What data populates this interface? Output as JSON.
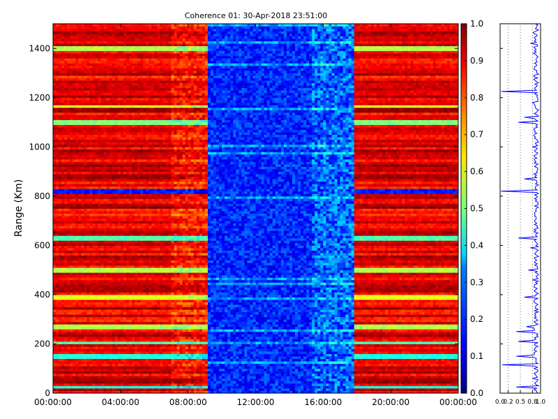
{
  "chart_data": [
    {
      "type": "heatmap",
      "title": "Coherence 01: 30-Apr-2018 23:51:00",
      "ylabel": "Range (Km)",
      "xlabel": "",
      "x_tick_labels": [
        "00:00:00",
        "04:00:00",
        "08:00:00",
        "12:00:00",
        "16:00:00",
        "20:00:00",
        "00:00:00"
      ],
      "x_range_hours": [
        0,
        24
      ],
      "y_ticks": [
        0,
        200,
        400,
        600,
        800,
        1000,
        1200,
        1400
      ],
      "ylim": [
        0,
        1500
      ],
      "colorscale": "jet",
      "value_range": [
        0.0,
        1.0
      ],
      "time_segments": [
        {
          "start_hour": 0.0,
          "end_hour": 7.0,
          "mean_coherence": 0.88,
          "spread": 0.12
        },
        {
          "start_hour": 7.0,
          "end_hour": 9.1,
          "mean_coherence": 0.85,
          "spread": 0.15
        },
        {
          "start_hour": 9.1,
          "end_hour": 15.3,
          "mean_coherence": 0.16,
          "spread": 0.08
        },
        {
          "start_hour": 15.3,
          "end_hour": 17.9,
          "mean_coherence": 0.22,
          "spread": 0.12
        },
        {
          "start_hour": 17.9,
          "end_hour": 24.0,
          "mean_coherence": 0.88,
          "spread": 0.12
        }
      ],
      "low_coherence_range_bands_km": [
        {
          "center": 820,
          "value": 0.15
        },
        {
          "center": 630,
          "value": 0.45
        },
        {
          "center": 205,
          "value": 0.45
        },
        {
          "center": 150,
          "value": 0.4
        },
        {
          "center": 25,
          "value": 0.4
        },
        {
          "center": 1100,
          "value": 0.5
        },
        {
          "center": 1400,
          "value": 0.55
        },
        {
          "center": 390,
          "value": 0.6
        },
        {
          "center": 500,
          "value": 0.55
        },
        {
          "center": 270,
          "value": 0.55
        },
        {
          "center": 1165,
          "value": 0.6
        }
      ],
      "grid": false
    },
    {
      "type": "colorbar",
      "ticks": [
        "0.0",
        "0.1",
        "0.2",
        "0.3",
        "0.4",
        "0.5",
        "0.6",
        "0.7",
        "0.8",
        "0.9",
        "1.0"
      ],
      "range": [
        0.0,
        1.0
      ]
    },
    {
      "type": "line",
      "description_profile": "mean coherence vs range",
      "x_tick_labels": [
        "0.0",
        "0.2",
        "0.5",
        "0.8",
        "1.0"
      ],
      "xlim": [
        0,
        1
      ],
      "ylim": [
        0,
        1500
      ],
      "baseline": 0.95,
      "dips": [
        {
          "range_km": 1465,
          "value": 0.82
        },
        {
          "range_km": 1420,
          "value": 0.75
        },
        {
          "range_km": 1380,
          "value": 0.82
        },
        {
          "range_km": 1340,
          "value": 0.85
        },
        {
          "range_km": 1225,
          "value": 0.03
        },
        {
          "range_km": 1180,
          "value": 0.8
        },
        {
          "range_km": 1120,
          "value": 0.6
        },
        {
          "range_km": 1100,
          "value": 0.45
        },
        {
          "range_km": 1060,
          "value": 0.85
        },
        {
          "range_km": 1000,
          "value": 0.8
        },
        {
          "range_km": 920,
          "value": 0.85
        },
        {
          "range_km": 870,
          "value": 0.6
        },
        {
          "range_km": 820,
          "value": 0.02
        },
        {
          "range_km": 790,
          "value": 0.85
        },
        {
          "range_km": 720,
          "value": 0.85
        },
        {
          "range_km": 630,
          "value": 0.45
        },
        {
          "range_km": 590,
          "value": 0.75
        },
        {
          "range_km": 500,
          "value": 0.7
        },
        {
          "range_km": 460,
          "value": 0.8
        },
        {
          "range_km": 390,
          "value": 0.6
        },
        {
          "range_km": 335,
          "value": 0.85
        },
        {
          "range_km": 270,
          "value": 0.65
        },
        {
          "range_km": 250,
          "value": 0.4
        },
        {
          "range_km": 210,
          "value": 0.45
        },
        {
          "range_km": 150,
          "value": 0.4
        },
        {
          "range_km": 115,
          "value": 0.05
        },
        {
          "range_km": 60,
          "value": 0.8
        },
        {
          "range_km": 25,
          "value": 0.4
        }
      ]
    }
  ]
}
